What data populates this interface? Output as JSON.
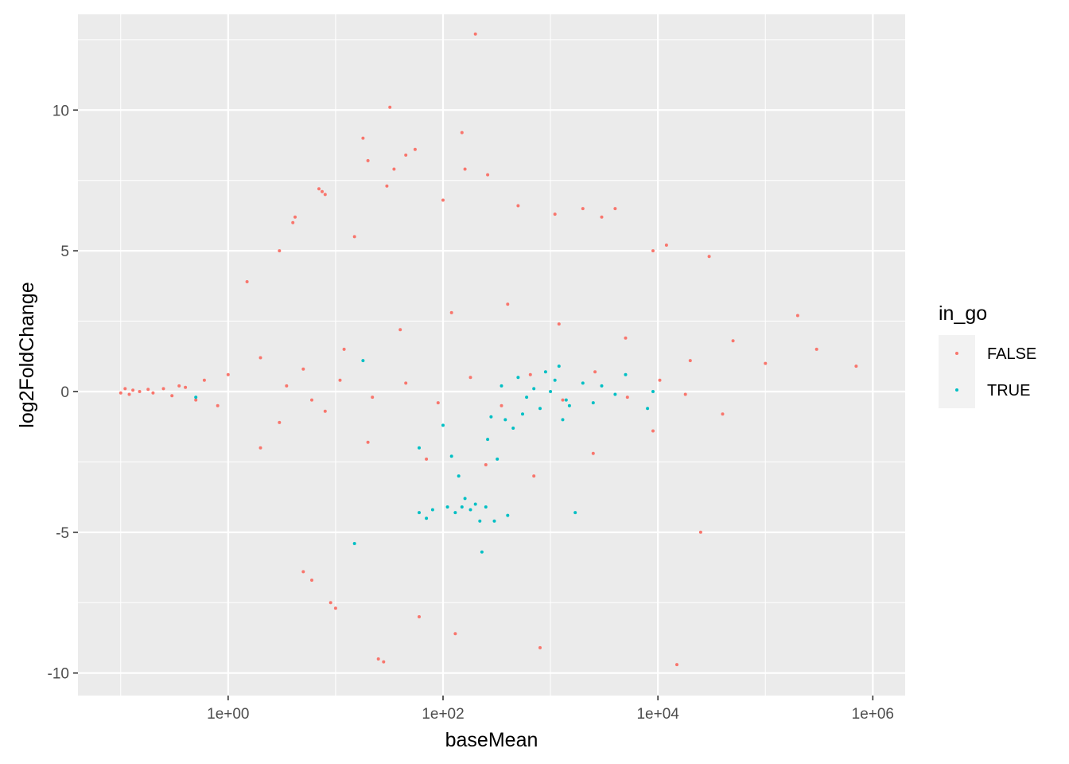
{
  "chart_data": {
    "type": "scatter",
    "title": "",
    "xlabel": "baseMean",
    "ylabel": "log2FoldChange",
    "x_scale": "log10",
    "xlim": [
      0.04,
      2000000
    ],
    "ylim": [
      -10.8,
      13.4
    ],
    "x_ticks": [
      {
        "value": 1,
        "label": "1e+00"
      },
      {
        "value": 100,
        "label": "1e+02"
      },
      {
        "value": 10000,
        "label": "1e+04"
      },
      {
        "value": 1000000,
        "label": "1e+06"
      }
    ],
    "y_ticks": [
      {
        "value": -10,
        "label": "-10"
      },
      {
        "value": -5,
        "label": "-5"
      },
      {
        "value": 0,
        "label": "0"
      },
      {
        "value": 5,
        "label": "5"
      },
      {
        "value": 10,
        "label": "10"
      }
    ],
    "grid": true,
    "legend": {
      "title": "in_go",
      "placement": "right",
      "entries": [
        {
          "label": "FALSE",
          "color": "#F8766D"
        },
        {
          "label": "TRUE",
          "color": "#00BFC4"
        }
      ]
    },
    "background_color": "#EBEBEB",
    "grid_color": "#FFFFFF",
    "series": [
      {
        "name": "FALSE",
        "color": "#F8766D",
        "points": [
          [
            0.1,
            -0.05
          ],
          [
            0.11,
            0.1
          ],
          [
            0.12,
            -0.1
          ],
          [
            0.13,
            0.05
          ],
          [
            0.15,
            0.0
          ],
          [
            0.18,
            0.08
          ],
          [
            0.2,
            -0.05
          ],
          [
            0.25,
            0.1
          ],
          [
            0.3,
            -0.15
          ],
          [
            0.35,
            0.2
          ],
          [
            0.4,
            0.15
          ],
          [
            0.5,
            -0.3
          ],
          [
            0.6,
            0.4
          ],
          [
            0.8,
            -0.5
          ],
          [
            1.0,
            0.6
          ],
          [
            1.5,
            3.9
          ],
          [
            2.0,
            -2.0
          ],
          [
            3.0,
            5.0
          ],
          [
            4.0,
            6.0
          ],
          [
            4.2,
            6.2
          ],
          [
            5.0,
            -6.4
          ],
          [
            6.0,
            -6.7
          ],
          [
            7.0,
            7.2
          ],
          [
            7.5,
            7.1
          ],
          [
            8.0,
            7.0
          ],
          [
            9.0,
            -7.5
          ],
          [
            10.0,
            -7.7
          ],
          [
            15.0,
            5.5
          ],
          [
            18.0,
            9.0
          ],
          [
            20.0,
            8.2
          ],
          [
            25.0,
            -9.5
          ],
          [
            28.0,
            -9.6
          ],
          [
            30.0,
            7.3
          ],
          [
            32.0,
            10.1
          ],
          [
            35.0,
            7.9
          ],
          [
            45.0,
            8.4
          ],
          [
            55.0,
            8.6
          ],
          [
            60.0,
            -8.0
          ],
          [
            100.0,
            6.8
          ],
          [
            130.0,
            -8.6
          ],
          [
            150.0,
            9.2
          ],
          [
            160.0,
            7.9
          ],
          [
            200.0,
            12.7
          ],
          [
            260.0,
            7.7
          ],
          [
            500.0,
            6.6
          ],
          [
            800.0,
            -9.1
          ],
          [
            1100.0,
            6.3
          ],
          [
            2000.0,
            6.5
          ],
          [
            3000.0,
            6.2
          ],
          [
            4000.0,
            6.5
          ],
          [
            9000.0,
            5.0
          ],
          [
            12000.0,
            5.2
          ],
          [
            15000.0,
            -9.7
          ],
          [
            25000.0,
            -5.0
          ],
          [
            30000.0,
            4.8
          ],
          [
            50000.0,
            1.8
          ],
          [
            100000.0,
            1.0
          ],
          [
            200000.0,
            2.7
          ],
          [
            300000.0,
            1.5
          ],
          [
            700000.0,
            0.9
          ],
          [
            2.0,
            1.2
          ],
          [
            3.0,
            -1.1
          ],
          [
            5.0,
            0.8
          ],
          [
            8.0,
            -0.7
          ],
          [
            12.0,
            1.5
          ],
          [
            20.0,
            -1.8
          ],
          [
            40.0,
            2.2
          ],
          [
            70.0,
            -2.4
          ],
          [
            120.0,
            2.8
          ],
          [
            250.0,
            -2.6
          ],
          [
            400.0,
            3.1
          ],
          [
            700.0,
            -3.0
          ],
          [
            1200.0,
            2.4
          ],
          [
            2500.0,
            -2.2
          ],
          [
            5000.0,
            1.9
          ],
          [
            9000.0,
            -1.4
          ],
          [
            20000.0,
            1.1
          ],
          [
            40000.0,
            -0.8
          ],
          [
            3.5,
            0.2
          ],
          [
            6.0,
            -0.3
          ],
          [
            11.0,
            0.4
          ],
          [
            22.0,
            -0.2
          ],
          [
            45.0,
            0.3
          ],
          [
            90.0,
            -0.4
          ],
          [
            180.0,
            0.5
          ],
          [
            350.0,
            -0.5
          ],
          [
            650.0,
            0.6
          ],
          [
            1300.0,
            -0.3
          ],
          [
            2600.0,
            0.7
          ],
          [
            5200.0,
            -0.2
          ],
          [
            10400.0,
            0.4
          ],
          [
            18000.0,
            -0.1
          ]
        ]
      },
      {
        "name": "TRUE",
        "color": "#00BFC4",
        "points": [
          [
            0.5,
            -0.2
          ],
          [
            15.0,
            -5.4
          ],
          [
            18.0,
            1.1
          ],
          [
            60.0,
            -2.0
          ],
          [
            60.0,
            -4.3
          ],
          [
            70.0,
            -4.5
          ],
          [
            80.0,
            -4.2
          ],
          [
            100.0,
            -1.2
          ],
          [
            110.0,
            -4.1
          ],
          [
            120.0,
            -2.3
          ],
          [
            130.0,
            -4.3
          ],
          [
            140.0,
            -3.0
          ],
          [
            150.0,
            -4.1
          ],
          [
            160.0,
            -3.8
          ],
          [
            180.0,
            -4.2
          ],
          [
            200.0,
            -4.0
          ],
          [
            220.0,
            -4.6
          ],
          [
            230.0,
            -5.7
          ],
          [
            250.0,
            -4.1
          ],
          [
            260.0,
            -1.7
          ],
          [
            280.0,
            -0.9
          ],
          [
            300.0,
            -4.6
          ],
          [
            320.0,
            -2.4
          ],
          [
            350.0,
            0.2
          ],
          [
            380.0,
            -1.0
          ],
          [
            400.0,
            -4.4
          ],
          [
            450.0,
            -1.3
          ],
          [
            500.0,
            0.5
          ],
          [
            550.0,
            -0.8
          ],
          [
            600.0,
            -0.2
          ],
          [
            700.0,
            0.1
          ],
          [
            800.0,
            -0.6
          ],
          [
            900.0,
            0.7
          ],
          [
            1000.0,
            0.0
          ],
          [
            1100.0,
            0.4
          ],
          [
            1200.0,
            0.9
          ],
          [
            1300.0,
            -1.0
          ],
          [
            1400.0,
            -0.3
          ],
          [
            1500.0,
            -0.5
          ],
          [
            1700.0,
            -4.3
          ],
          [
            2000.0,
            0.3
          ],
          [
            2500.0,
            -0.4
          ],
          [
            3000.0,
            0.2
          ],
          [
            4000.0,
            -0.1
          ],
          [
            5000.0,
            0.6
          ],
          [
            8000.0,
            -0.6
          ],
          [
            9000.0,
            0.0
          ]
        ]
      }
    ]
  }
}
